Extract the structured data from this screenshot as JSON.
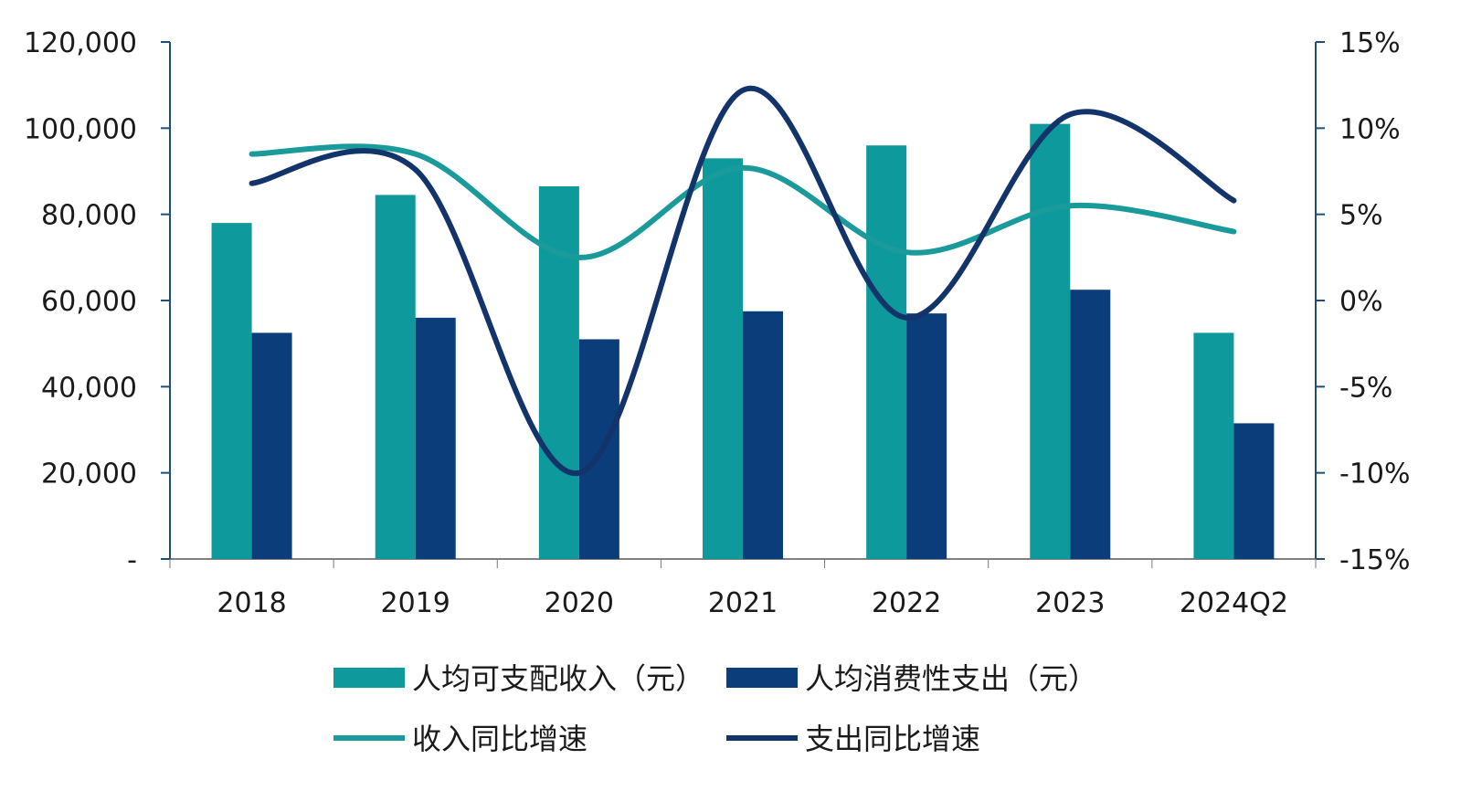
{
  "chart_data": {
    "type": "bar",
    "categories": [
      "2018",
      "2019",
      "2020",
      "2021",
      "2022",
      "2023",
      "2024Q2"
    ],
    "series": [
      {
        "name": "人均可支配收入（元）",
        "kind": "bar",
        "axis": "left",
        "color": "#0E9A9C",
        "values": [
          78000,
          84500,
          86500,
          93000,
          96000,
          101000,
          52500
        ]
      },
      {
        "name": "人均消费性支出（元）",
        "kind": "bar",
        "axis": "left",
        "color": "#0A3D7A",
        "values": [
          52500,
          56000,
          51000,
          57500,
          57000,
          62500,
          31500
        ]
      },
      {
        "name": "收入同比增速",
        "kind": "line",
        "axis": "right",
        "color": "#1A9A9A",
        "values": [
          0.085,
          0.085,
          0.025,
          0.077,
          0.028,
          0.055,
          0.04
        ]
      },
      {
        "name": "支出同比增速",
        "kind": "line",
        "axis": "right",
        "color": "#13336B",
        "values": [
          0.068,
          0.076,
          -0.1,
          0.122,
          -0.01,
          0.108,
          0.058
        ]
      }
    ],
    "y_left": {
      "range": [
        0,
        120000
      ],
      "tick_labels": [
        "-",
        "20,000",
        "40,000",
        "60,000",
        "80,000",
        "100,000",
        "120,000"
      ]
    },
    "y_right": {
      "range": [
        -0.15,
        0.15
      ],
      "tick_labels": [
        "-15%",
        "-10%",
        "-5%",
        "0%",
        "5%",
        "10%",
        "15%"
      ]
    },
    "grid": false,
    "legend_position": "bottom"
  }
}
